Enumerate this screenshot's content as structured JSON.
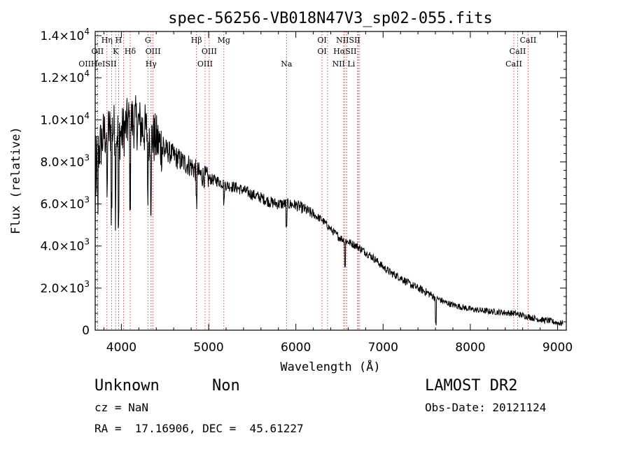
{
  "chart_data": {
    "type": "line",
    "title": "spec-56256-VB018N47V3_sp02-055.fits",
    "xlabel": "Wavelength (Å)",
    "ylabel": "Flux (relative)",
    "xlim": [
      3700,
      9100
    ],
    "ylim": [
      0,
      14200
    ],
    "x_ticks": [
      4000,
      5000,
      6000,
      7000,
      8000,
      9000
    ],
    "x_tick_labels": [
      "4000",
      "5000",
      "6000",
      "7000",
      "8000",
      "9000"
    ],
    "y_ticks": [
      0,
      2000,
      4000,
      6000,
      8000,
      10000,
      12000,
      14000
    ],
    "y_tick_labels": [
      {
        "mant": "0",
        "exp": ""
      },
      {
        "mant": "2.0×10",
        "exp": "3"
      },
      {
        "mant": "4.0×10",
        "exp": "3"
      },
      {
        "mant": "6.0×10",
        "exp": "3"
      },
      {
        "mant": "8.0×10",
        "exp": "3"
      },
      {
        "mant": "1.0×10",
        "exp": "4"
      },
      {
        "mant": "1.2×10",
        "exp": "4"
      },
      {
        "mant": "1.4×10",
        "exp": "4"
      }
    ],
    "series": [
      {
        "color": "#000000",
        "continuum": [
          [
            3700,
            8000
          ],
          [
            3800,
            9300
          ],
          [
            3900,
            9600
          ],
          [
            4000,
            9300
          ],
          [
            4100,
            10000
          ],
          [
            4200,
            9800
          ],
          [
            4300,
            9400
          ],
          [
            4400,
            9000
          ],
          [
            4500,
            8600
          ],
          [
            4600,
            8300
          ],
          [
            4700,
            8000
          ],
          [
            4800,
            7800
          ],
          [
            4900,
            7400
          ],
          [
            5000,
            7200
          ],
          [
            5100,
            7100
          ],
          [
            5200,
            6900
          ],
          [
            5300,
            6800
          ],
          [
            5400,
            6650
          ],
          [
            5500,
            6450
          ],
          [
            5600,
            6300
          ],
          [
            5700,
            6100
          ],
          [
            5800,
            6000
          ],
          [
            5900,
            6000
          ],
          [
            6000,
            5950
          ],
          [
            6100,
            5750
          ],
          [
            6200,
            5500
          ],
          [
            6300,
            5250
          ],
          [
            6400,
            4800
          ],
          [
            6500,
            4400
          ],
          [
            6600,
            4200
          ],
          [
            6700,
            4000
          ],
          [
            6800,
            3700
          ],
          [
            6900,
            3400
          ],
          [
            7000,
            3000
          ],
          [
            7100,
            2700
          ],
          [
            7200,
            2500
          ],
          [
            7300,
            2200
          ],
          [
            7400,
            2000
          ],
          [
            7500,
            1800
          ],
          [
            7600,
            1550
          ],
          [
            7700,
            1350
          ],
          [
            7800,
            1200
          ],
          [
            7900,
            1100
          ],
          [
            8000,
            1000
          ],
          [
            8100,
            950
          ],
          [
            8200,
            900
          ],
          [
            8300,
            870
          ],
          [
            8400,
            830
          ],
          [
            8500,
            800
          ],
          [
            8600,
            700
          ],
          [
            8700,
            600
          ],
          [
            8800,
            500
          ],
          [
            8900,
            450
          ],
          [
            9000,
            350
          ],
          [
            9100,
            300
          ]
        ],
        "dips": [
          [
            3727,
            2500
          ],
          [
            3835,
            3000
          ],
          [
            3889,
            3500
          ],
          [
            3934,
            3800
          ],
          [
            3968,
            4500
          ],
          [
            4101,
            3200
          ],
          [
            4304,
            2500
          ],
          [
            4340,
            2800
          ],
          [
            4861,
            1500
          ],
          [
            5175,
            800
          ],
          [
            5893,
            1200
          ],
          [
            6563,
            1200
          ],
          [
            7605,
            1300
          ]
        ]
      }
    ],
    "lines_row1": [
      {
        "label": "Hη",
        "x": 3835
      },
      {
        "label": "H",
        "x": 3968
      },
      {
        "label": "G",
        "x": 4304
      },
      {
        "label": "Hβ",
        "x": 4861
      },
      {
        "label": "Mg",
        "x": 5175
      },
      {
        "label": "OI",
        "x": 6300
      },
      {
        "label": "NIISII",
        "x": 6600
      },
      {
        "label": "CaII",
        "x": 8662
      }
    ],
    "lines_row2": [
      {
        "label": "OII",
        "x": 3727
      },
      {
        "label": "K",
        "x": 3934
      },
      {
        "label": "Hδ",
        "x": 4101
      },
      {
        "label": "OIII",
        "x": 4363
      },
      {
        "label": "OIII",
        "x": 5007
      },
      {
        "label": "OI",
        "x": 6300
      },
      {
        "label": "HαSII",
        "x": 6563
      },
      {
        "label": "CaII",
        "x": 8542
      }
    ],
    "lines_row3": [
      {
        "label": "OIIHeISII",
        "x": 3727
      },
      {
        "label": "Hγ",
        "x": 4340
      },
      {
        "label": "OIII",
        "x": 4959
      },
      {
        "label": "Na",
        "x": 5893
      },
      {
        "label": "NII Li",
        "x": 6548
      },
      {
        "label": "CaII",
        "x": 8498
      }
    ],
    "marker_lines": [
      3727,
      3835,
      3889,
      3934,
      3968,
      4026,
      4101,
      4304,
      4340,
      4363,
      4861,
      4959,
      5007,
      5175,
      5893,
      6300,
      6363,
      6548,
      6563,
      6583,
      6707,
      6716,
      6731,
      8498,
      8542,
      8662
    ]
  },
  "info": {
    "object_class": "Unknown",
    "subclass": "Non",
    "survey": "LAMOST DR2",
    "cz": "cz = NaN",
    "obs_date": "Obs-Date: 20121124",
    "coords": "RA =  17.16906, DEC =  45.61227"
  }
}
